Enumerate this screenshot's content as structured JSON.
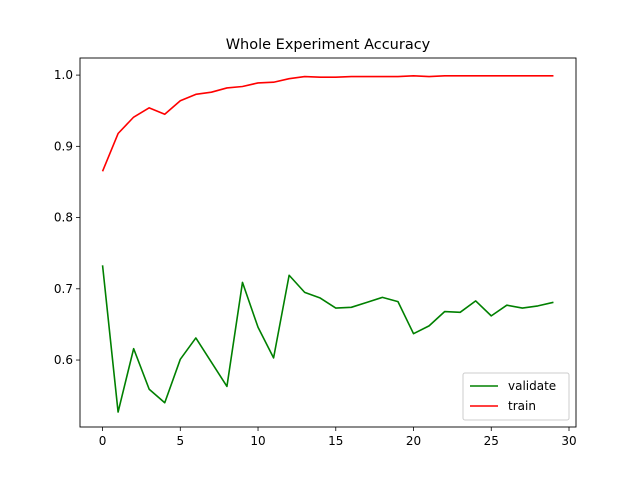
{
  "chart_data": {
    "type": "line",
    "title": "Whole Experiment Accuracy",
    "xlabel": "",
    "ylabel": "",
    "xlim": [
      -1.45,
      30.45
    ],
    "ylim": [
      0.506,
      1.024
    ],
    "xticks": [
      0,
      5,
      10,
      15,
      20,
      25,
      30
    ],
    "yticks": [
      0.6,
      0.7,
      0.8,
      0.9,
      1.0
    ],
    "xtick_labels": [
      "0",
      "5",
      "10",
      "15",
      "20",
      "25",
      "30"
    ],
    "ytick_labels": [
      "0.6",
      "0.7",
      "0.8",
      "0.9",
      "1.0"
    ],
    "grid": false,
    "legend_position": "lower-right",
    "series": [
      {
        "name": "validate",
        "color": "#008000",
        "x": [
          0,
          1,
          2,
          3,
          4,
          5,
          6,
          7,
          8,
          9,
          10,
          11,
          12,
          13,
          14,
          15,
          16,
          17,
          18,
          19,
          20,
          21,
          22,
          23,
          24,
          25,
          26,
          27,
          28,
          29
        ],
        "values": [
          0.733,
          0.527,
          0.616,
          0.559,
          0.54,
          0.601,
          0.631,
          0.597,
          0.563,
          0.709,
          0.646,
          0.603,
          0.719,
          0.695,
          0.687,
          0.673,
          0.674,
          0.681,
          0.688,
          0.682,
          0.637,
          0.648,
          0.668,
          0.667,
          0.683,
          0.662,
          0.677,
          0.673,
          0.676,
          0.681
        ]
      },
      {
        "name": "train",
        "color": "#ff0000",
        "x": [
          0,
          1,
          2,
          3,
          4,
          5,
          6,
          7,
          8,
          9,
          10,
          11,
          12,
          13,
          14,
          15,
          16,
          17,
          18,
          19,
          20,
          21,
          22,
          23,
          24,
          25,
          26,
          27,
          28,
          29
        ],
        "values": [
          0.865,
          0.918,
          0.941,
          0.954,
          0.945,
          0.964,
          0.973,
          0.976,
          0.982,
          0.984,
          0.989,
          0.99,
          0.995,
          0.998,
          0.997,
          0.997,
          0.998,
          0.998,
          0.998,
          0.998,
          0.999,
          0.998,
          0.999,
          0.999,
          0.999,
          0.999,
          0.999,
          0.999,
          0.999,
          0.999
        ]
      }
    ]
  }
}
